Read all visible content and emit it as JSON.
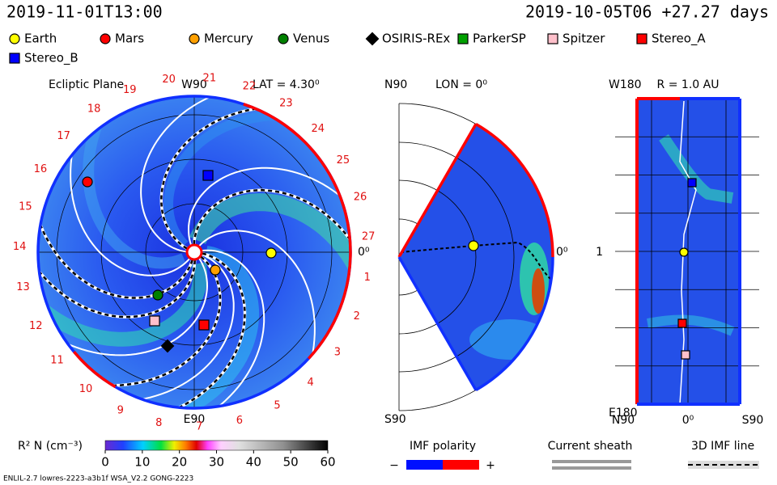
{
  "header": {
    "left_time": "2019-11-01T13:00",
    "right_time": "2019-10-05T06 +27.27 days"
  },
  "legend": [
    {
      "name": "Earth",
      "color": "#ffff00",
      "shape": "circle"
    },
    {
      "name": "Mars",
      "color": "#ff0000",
      "shape": "circle"
    },
    {
      "name": "Mercury",
      "color": "#ffa000",
      "shape": "circle"
    },
    {
      "name": "Venus",
      "color": "#008000",
      "shape": "circle"
    },
    {
      "name": "OSIRIS-REx",
      "color": "#000000",
      "shape": "diamond"
    },
    {
      "name": "ParkerSP",
      "color": "#00a000",
      "shape": "square"
    },
    {
      "name": "Spitzer",
      "color": "#ffc0cb",
      "shape": "square"
    },
    {
      "name": "Stereo_A",
      "color": "#ff0000",
      "shape": "square"
    },
    {
      "name": "Stereo_B",
      "color": "#0000ff",
      "shape": "square"
    }
  ],
  "ecliptic": {
    "title": "Ecliptic Plane",
    "top": "W90",
    "lat": "LAT = 4.30⁰",
    "right": "0⁰",
    "bottom": "E90",
    "carrington": [
      1,
      2,
      3,
      4,
      5,
      6,
      7,
      8,
      9,
      10,
      11,
      12,
      13,
      14,
      15,
      16,
      17,
      18,
      19,
      20,
      21,
      22,
      23,
      24,
      25,
      26,
      27
    ]
  },
  "meridional": {
    "top": "N90",
    "lon": "LON = 0⁰",
    "right": "0⁰",
    "bottom": "S90"
  },
  "cylinder": {
    "top": "W180",
    "radius": "R = 1.0 AU",
    "left_mid": "1",
    "bottom": "E180",
    "x_left": "N90",
    "x_mid": "0⁰",
    "x_right": "S90"
  },
  "colorbar": {
    "label": "R² N (cm⁻³)",
    "lim": [
      0,
      60
    ],
    "ticks": [
      0,
      10,
      20,
      30,
      40,
      50,
      60
    ]
  },
  "keys": {
    "imf_title": "IMF polarity",
    "minus": "−",
    "plus": "+",
    "sheath": "Current sheath",
    "imf_line": "3D IMF line"
  },
  "footer": "ENLIL-2.7 lowres-2223-a3b1f WSA_V2.2 GONG-2223"
}
